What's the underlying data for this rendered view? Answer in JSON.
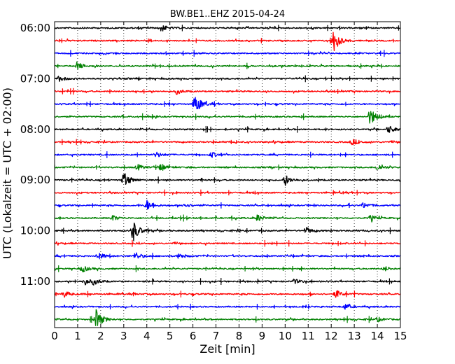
{
  "chart_data": {
    "type": "line",
    "title": "BW.BE1..EHZ 2015-04-24",
    "xlabel": "Zeit  [min]",
    "ylabel": "UTC (Lokalzeit = UTC + 02:00)",
    "xlim": [
      0,
      15
    ],
    "x_ticks": [
      "0",
      "1",
      "2",
      "3",
      "4",
      "5",
      "6",
      "7",
      "8",
      "9",
      "10",
      "11",
      "12",
      "13",
      "14",
      "15"
    ],
    "y_tick_labels": [
      "06:00",
      "07:00",
      "08:00",
      "09:00",
      "10:00",
      "11:00"
    ],
    "grid": "vertical dotted",
    "trace_colors": [
      "#000000",
      "#ff0000",
      "#0000ff",
      "#008000"
    ],
    "traces": [
      {
        "start": "06:00",
        "color": "#000000",
        "events": [
          [
            4.6,
            0.35
          ]
        ]
      },
      {
        "start": "06:15",
        "color": "#ff0000",
        "events": [
          [
            12.1,
            1.0
          ]
        ]
      },
      {
        "start": "06:30",
        "color": "#0000ff",
        "events": []
      },
      {
        "start": "06:45",
        "color": "#008000",
        "events": [
          [
            1.0,
            0.3
          ]
        ]
      },
      {
        "start": "07:00",
        "color": "#000000",
        "events": [
          [
            0.2,
            0.25
          ]
        ]
      },
      {
        "start": "07:15",
        "color": "#ff0000",
        "events": [
          [
            5.3,
            0.25
          ]
        ]
      },
      {
        "start": "07:30",
        "color": "#0000ff",
        "events": [
          [
            6.1,
            0.9
          ]
        ]
      },
      {
        "start": "07:45",
        "color": "#008000",
        "events": [
          [
            13.7,
            0.75
          ]
        ]
      },
      {
        "start": "08:00",
        "color": "#000000",
        "events": [
          [
            14.5,
            0.35
          ]
        ]
      },
      {
        "start": "08:15",
        "color": "#ff0000",
        "events": [
          [
            12.9,
            0.25
          ]
        ]
      },
      {
        "start": "08:30",
        "color": "#0000ff",
        "events": [
          [
            4.4,
            0.25
          ],
          [
            6.8,
            0.25
          ]
        ]
      },
      {
        "start": "08:45",
        "color": "#008000",
        "events": [
          [
            3.6,
            0.25
          ],
          [
            4.6,
            0.25
          ],
          [
            14.0,
            0.3
          ]
        ]
      },
      {
        "start": "09:00",
        "color": "#000000",
        "events": [
          [
            3.0,
            0.7
          ],
          [
            10.0,
            0.45
          ]
        ]
      },
      {
        "start": "09:15",
        "color": "#ff0000",
        "events": []
      },
      {
        "start": "09:30",
        "color": "#0000ff",
        "events": [
          [
            4.0,
            0.45
          ],
          [
            5.6,
            0.2
          ],
          [
            13.4,
            0.25
          ]
        ]
      },
      {
        "start": "09:45",
        "color": "#008000",
        "events": [
          [
            2.5,
            0.25
          ],
          [
            8.8,
            0.3
          ],
          [
            13.7,
            0.25
          ]
        ]
      },
      {
        "start": "10:00",
        "color": "#000000",
        "events": [
          [
            3.4,
            1.0
          ],
          [
            10.9,
            0.3
          ]
        ]
      },
      {
        "start": "10:15",
        "color": "#ff0000",
        "events": []
      },
      {
        "start": "10:30",
        "color": "#0000ff",
        "events": [
          [
            1.9,
            0.3
          ],
          [
            3.5,
            0.35
          ],
          [
            5.4,
            0.25
          ]
        ]
      },
      {
        "start": "10:45",
        "color": "#008000",
        "events": [
          [
            1.2,
            0.3
          ],
          [
            14.3,
            0.2
          ]
        ]
      },
      {
        "start": "11:00",
        "color": "#000000",
        "events": [
          [
            1.3,
            0.3
          ],
          [
            1.7,
            0.25
          ],
          [
            10.4,
            0.2
          ]
        ]
      },
      {
        "start": "11:15",
        "color": "#ff0000",
        "events": [
          [
            0.4,
            0.3
          ],
          [
            12.2,
            0.35
          ]
        ]
      },
      {
        "start": "11:30",
        "color": "#0000ff",
        "events": [
          [
            12.6,
            0.25
          ]
        ]
      },
      {
        "start": "11:45",
        "color": "#008000",
        "events": [
          [
            1.8,
            0.9
          ],
          [
            14.0,
            0.2
          ]
        ]
      }
    ]
  }
}
